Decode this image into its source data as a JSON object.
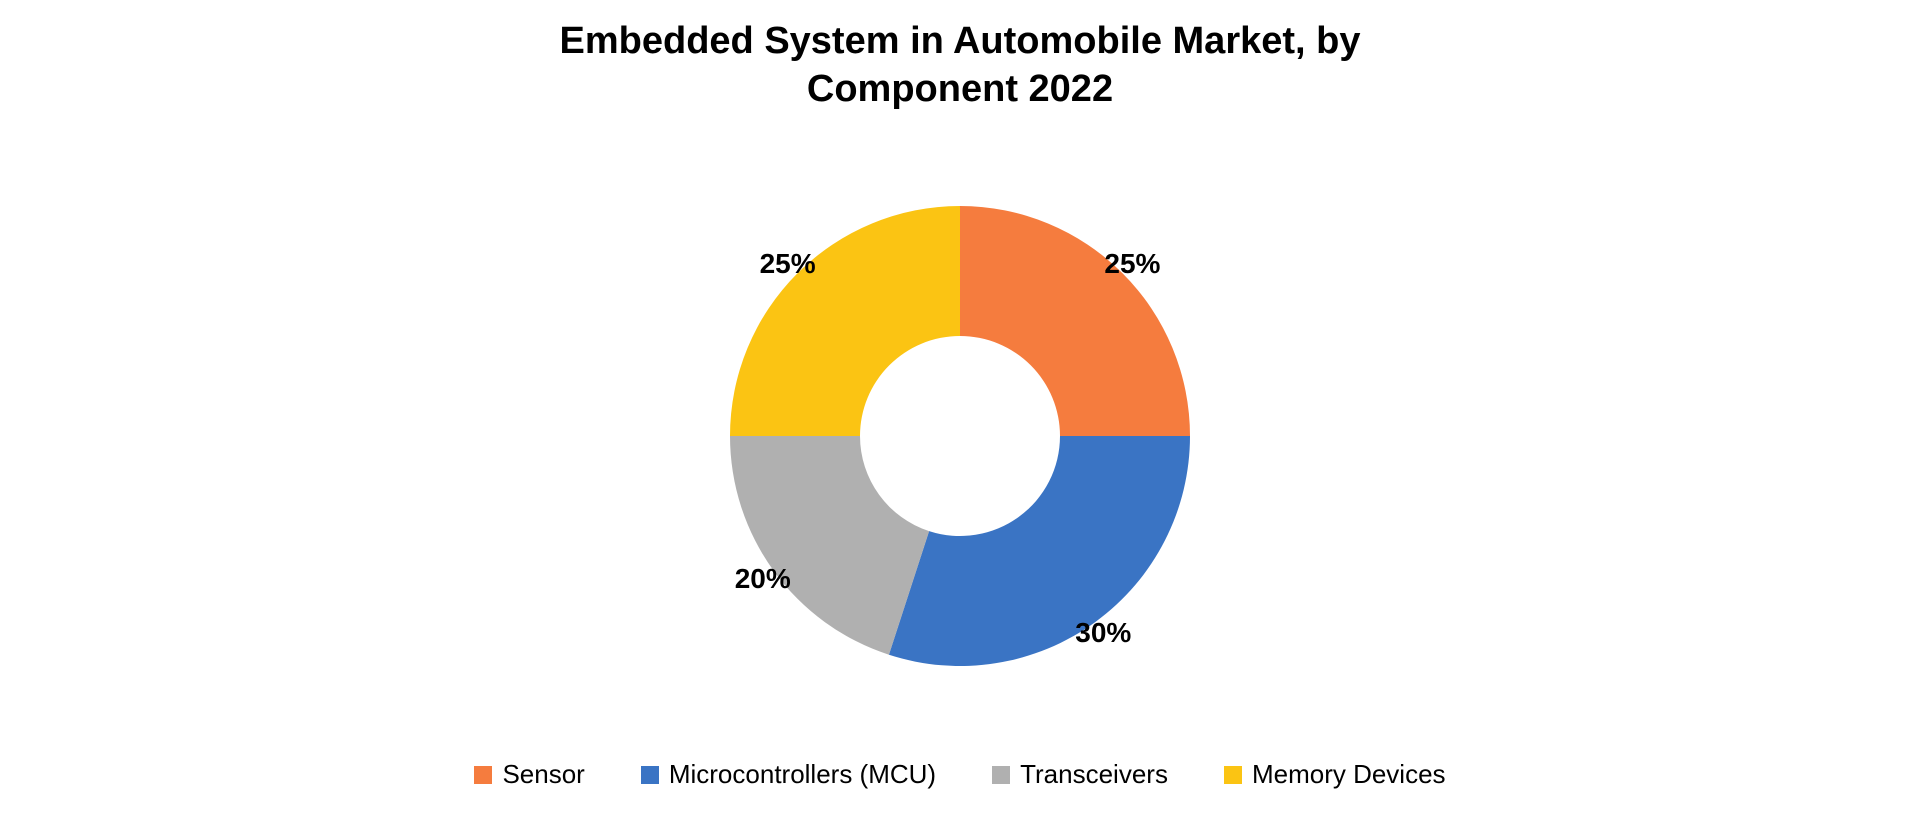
{
  "chart": {
    "type": "donut",
    "title": "Embedded System in Automobile Market, by\nComponent 2022",
    "title_fontsize": 38,
    "title_fontweight": 600,
    "title_color": "#000000",
    "background_color": "#ffffff",
    "outer_radius": 230,
    "inner_radius": 100,
    "start_angle_deg": 0,
    "direction": "clockwise",
    "label_fontsize": 28,
    "label_fontweight": 700,
    "label_color": "#000000",
    "label_radius_factor": 1.06,
    "legend": {
      "position": "bottom",
      "fontsize": 26,
      "swatch_size": 18,
      "gap": 56,
      "color": "#000000"
    },
    "slices": [
      {
        "name": "Sensor",
        "value": 25,
        "label": "25%",
        "color": "#f57c3e"
      },
      {
        "name": "Microcontrollers (MCU)",
        "value": 30,
        "label": "30%",
        "color": "#3a74c4"
      },
      {
        "name": "Transceivers",
        "value": 20,
        "label": "20%",
        "color": "#b0b0b0"
      },
      {
        "name": "Memory Devices",
        "value": 25,
        "label": "25%",
        "color": "#fbc413"
      }
    ]
  }
}
